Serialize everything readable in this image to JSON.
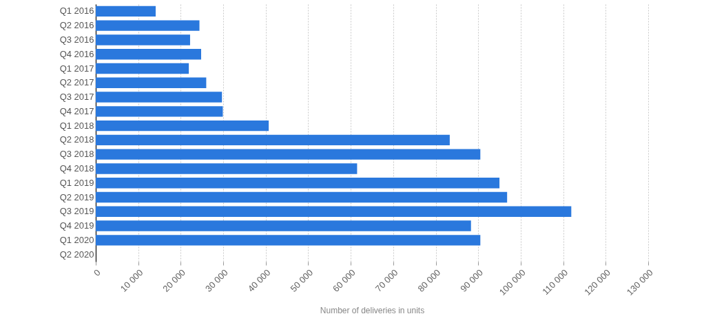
{
  "chart_data": {
    "type": "bar",
    "orientation": "horizontal",
    "categories": [
      "Q1 2016",
      "Q2 2016",
      "Q3 2016",
      "Q4 2016",
      "Q1 2017",
      "Q2 2017",
      "Q3 2017",
      "Q4 2017",
      "Q1 2018",
      "Q2 2018",
      "Q3 2018",
      "Q4 2018",
      "Q1 2019",
      "Q2 2019",
      "Q3 2019",
      "Q4 2019",
      "Q1 2020",
      "Q2 2020"
    ],
    "values": [
      14100,
      24400,
      22200,
      24800,
      21900,
      26000,
      29700,
      29900,
      40700,
      83300,
      90500,
      61500,
      95000,
      96800,
      111900,
      88300,
      90500,
      null
    ],
    "color": "#2a78dd",
    "xlabel": "Number of deliveries in units",
    "xlim": [
      0,
      130000
    ],
    "xticks": [
      0,
      {
        "value": 10000,
        "label": "10 000"
      },
      {
        "value": 20000,
        "label": "20 000"
      },
      {
        "value": 30000,
        "label": "30 000"
      },
      {
        "value": 40000,
        "label": "40 000"
      },
      {
        "value": 50000,
        "label": "50 000"
      },
      {
        "value": 60000,
        "label": "60 000"
      },
      {
        "value": 70000,
        "label": "70 000"
      },
      {
        "value": 80000,
        "label": "80 000"
      },
      {
        "value": 90000,
        "label": "90 000"
      },
      {
        "value": 100000,
        "label": "100 000"
      },
      {
        "value": 110000,
        "label": "110 000"
      },
      {
        "value": 120000,
        "label": "120 000"
      },
      {
        "value": 130000,
        "label": "130 000"
      }
    ],
    "grid": "x"
  }
}
